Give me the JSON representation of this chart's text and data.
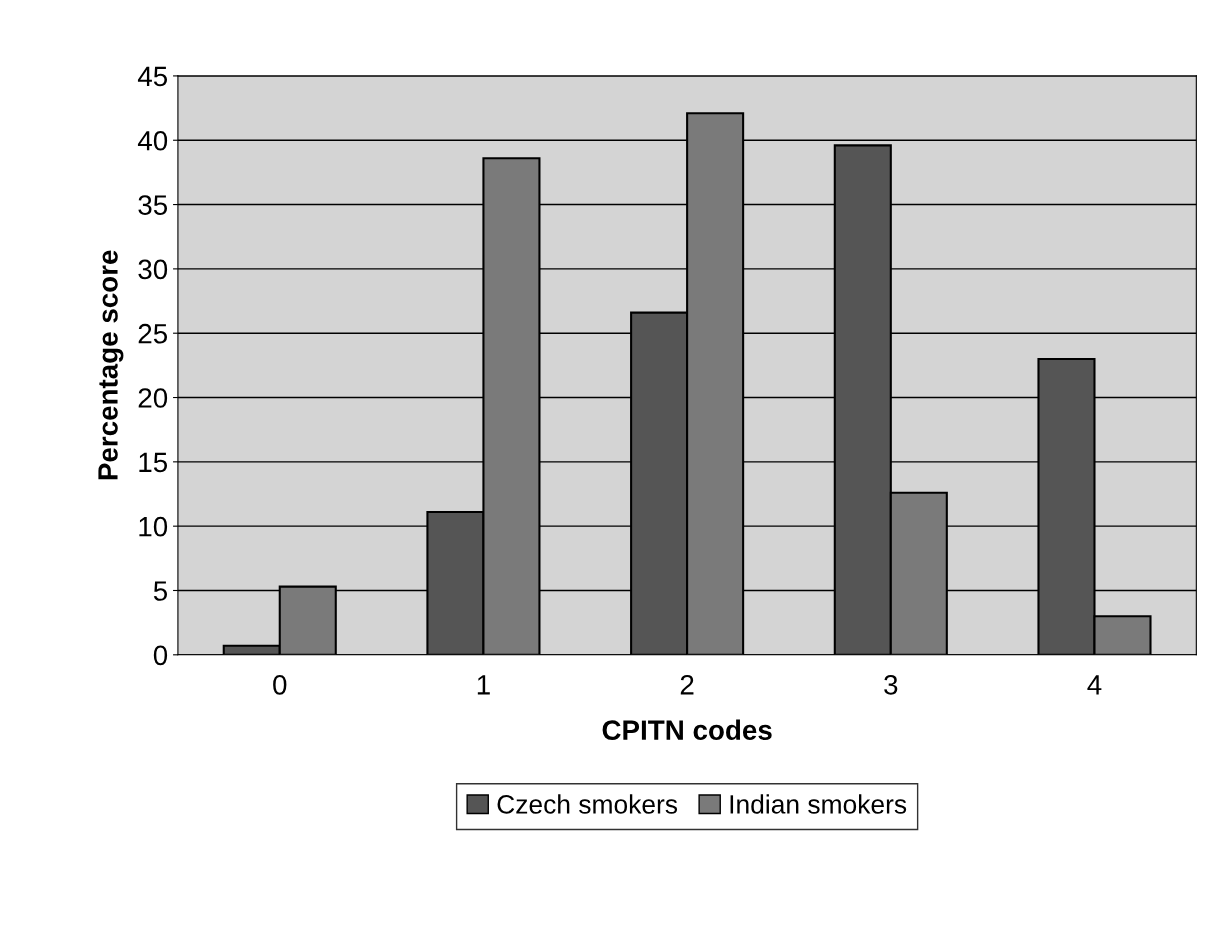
{
  "chart_data": {
    "type": "bar",
    "xlabel": "CPITN codes",
    "ylabel": "Percentage score",
    "categories": [
      "0",
      "1",
      "2",
      "3",
      "4"
    ],
    "series": [
      {
        "name": "Czech smokers",
        "color": "#555555",
        "values": [
          0.7,
          11.1,
          26.6,
          39.6,
          23.0
        ]
      },
      {
        "name": "Indian smokers",
        "color": "#7a7a7a",
        "values": [
          5.3,
          38.6,
          42.1,
          12.6,
          3.0
        ]
      }
    ],
    "ylim": [
      0,
      45
    ],
    "yticks": [
      0,
      5,
      10,
      15,
      20,
      25,
      30,
      35,
      40,
      45
    ],
    "grid": "y",
    "legend": "bottom"
  }
}
